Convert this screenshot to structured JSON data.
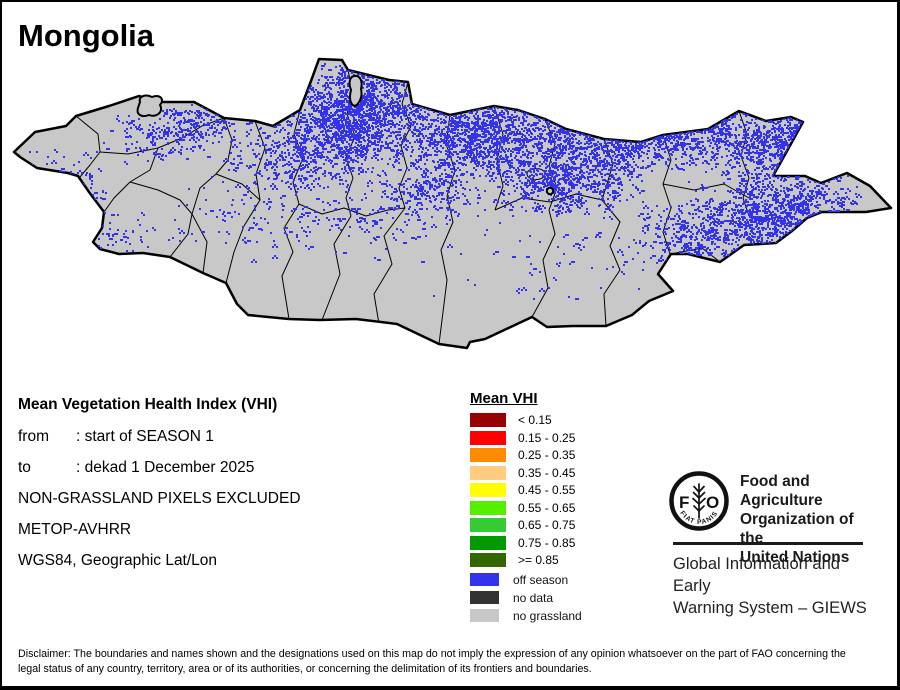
{
  "title": "Mongolia",
  "map": {
    "colors": {
      "land": "#C8C8C8",
      "border": "#000000",
      "off_season": "#3333EE",
      "background": "#FFFFFF"
    }
  },
  "info": {
    "heading": "Mean Vegetation Health Index (VHI)",
    "rows": [
      {
        "label": "from",
        "value": ": start of SEASON 1"
      },
      {
        "label": "to",
        "value": ": dekad 1 December 2025"
      }
    ],
    "notes": [
      "NON-GRASSLAND PIXELS EXCLUDED",
      "METOP-AVHRR",
      "WGS84, Geographic Lat/Lon"
    ]
  },
  "legend": {
    "title": "Mean VHI",
    "classes": [
      {
        "label": "< 0.15",
        "color": "#990000"
      },
      {
        "label": "0.15 - 0.25",
        "color": "#FF0000"
      },
      {
        "label": "0.25 - 0.35",
        "color": "#FF8C00"
      },
      {
        "label": "0.35 - 0.45",
        "color": "#FFCC80"
      },
      {
        "label": "0.45 - 0.55",
        "color": "#FFFF00"
      },
      {
        "label": "0.55 - 0.65",
        "color": "#55EE00"
      },
      {
        "label": "0.65 - 0.75",
        "color": "#33CC33"
      },
      {
        "label": "0.75 - 0.85",
        "color": "#009900"
      },
      {
        "label": ">= 0.85",
        "color": "#336600"
      }
    ],
    "extra_classes": [
      {
        "label": "off season",
        "color": "#3333EE"
      },
      {
        "label": "no data",
        "color": "#333333"
      },
      {
        "label": "no grassland",
        "color": "#C8C8C8"
      }
    ]
  },
  "branding": {
    "fao_name_lines": [
      "Food and Agriculture",
      "Organization of the",
      "United Nations"
    ],
    "fao_logo": {
      "letter_f": "F",
      "letter_o": "O",
      "motto": "FIAT   PANIS"
    },
    "giews_lines": [
      "Global Information and Early",
      "Warning System – GIEWS"
    ]
  },
  "disclaimer": "Disclaimer: The boundaries and names shown and the designations used on this map do not imply the expression of any opinion whatsoever on the part of FAO concerning the legal status of any country, territory, area or of its authorities, or concerning the delimitation of its frontiers and boundaries."
}
